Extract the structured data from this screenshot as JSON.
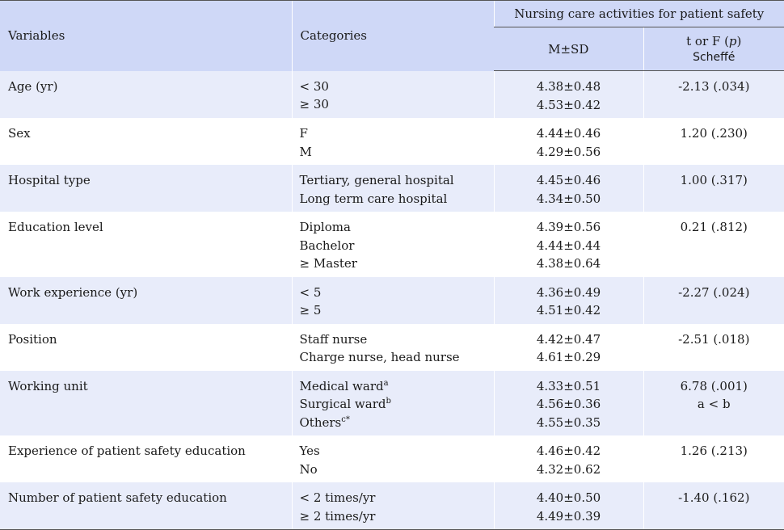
{
  "header": {
    "variables": "Variables",
    "categories": "Categories",
    "group": "Nursing care activities for patient safety",
    "msd": "M±SD",
    "stat_prefix": "t or F (",
    "stat_p": "p",
    "stat_suffix": ")",
    "scheffe": "Scheffé"
  },
  "rows": [
    {
      "variable": "Age (yr)",
      "categories": [
        "< 30",
        "≥ 30"
      ],
      "msd": [
        "4.38±0.48",
        "4.53±0.42"
      ],
      "stat": [
        "-2.13 (.034)"
      ]
    },
    {
      "variable": "Sex",
      "categories": [
        "F",
        "M"
      ],
      "msd": [
        "4.44±0.46",
        "4.29±0.56"
      ],
      "stat": [
        "1.20 (.230)"
      ]
    },
    {
      "variable": "Hospital type",
      "categories": [
        "Tertiary, general hospital",
        "Long term care hospital"
      ],
      "msd": [
        "4.45±0.46",
        "4.34±0.50"
      ],
      "stat": [
        "1.00 (.317)"
      ]
    },
    {
      "variable": "Education level",
      "categories": [
        "Diploma",
        "Bachelor",
        "≥ Master"
      ],
      "msd": [
        "4.39±0.56",
        "4.44±0.44",
        "4.38±0.64"
      ],
      "stat": [
        "0.21 (.812)"
      ]
    },
    {
      "variable": "Work experience (yr)",
      "categories": [
        "< 5",
        "≥ 5"
      ],
      "msd": [
        "4.36±0.49",
        "4.51±0.42"
      ],
      "stat": [
        "-2.27 (.024)"
      ]
    },
    {
      "variable": "Position",
      "categories": [
        "Staff nurse",
        "Charge nurse, head nurse"
      ],
      "msd": [
        "4.42±0.47",
        "4.61±0.29"
      ],
      "stat": [
        "-2.51 (.018)"
      ]
    },
    {
      "variable": "Working unit",
      "categories": [
        "Medical ward",
        "Surgical ward",
        "Others"
      ],
      "cat_sup": [
        "a",
        "b",
        "c*"
      ],
      "msd": [
        "4.33±0.51",
        "4.56±0.36",
        "4.55±0.35"
      ],
      "stat": [
        "6.78 (.001)",
        "a < b"
      ]
    },
    {
      "variable": "Experience of patient safety education",
      "categories": [
        "Yes",
        "No"
      ],
      "msd": [
        "4.46±0.42",
        "4.32±0.62"
      ],
      "stat": [
        "1.26 (.213)"
      ]
    },
    {
      "variable": "Number of patient safety education",
      "categories": [
        "< 2 times/yr",
        "≥ 2 times/yr"
      ],
      "msd": [
        "4.40±0.50",
        "4.49±0.39"
      ],
      "stat": [
        "-1.40 (.162)"
      ]
    }
  ]
}
